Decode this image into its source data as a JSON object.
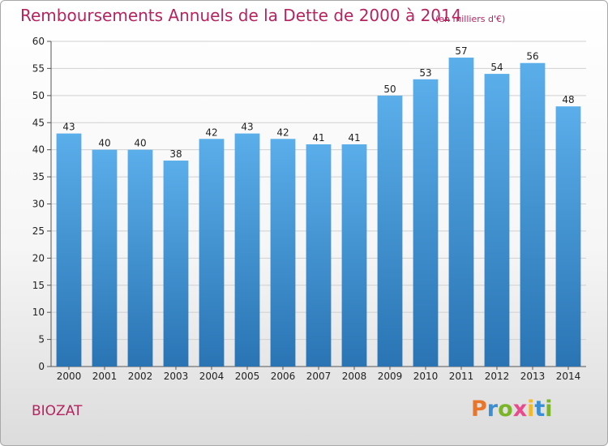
{
  "header": {
    "title": "Remboursements Annuels de la Dette de 2000 à 2014",
    "unit": "(en milliers d'€)"
  },
  "footer": {
    "commune": "BIOZAT",
    "logo": {
      "text": "Proxiti",
      "letters": [
        {
          "char": "P",
          "color": "#e8762a"
        },
        {
          "char": "r",
          "color": "#3a8fd4"
        },
        {
          "char": "o",
          "color": "#7ab528"
        },
        {
          "char": "x",
          "color": "#e84a8c"
        },
        {
          "char": "i",
          "color": "#f2b92b"
        },
        {
          "char": "t",
          "color": "#3a8fd4"
        },
        {
          "char": "i",
          "color": "#7ab528"
        }
      ]
    }
  },
  "chart_data": {
    "type": "bar",
    "title": "Remboursements Annuels de la Dette de 2000 à 2014",
    "subtitle": "(en milliers d'€)",
    "xlabel": "",
    "ylabel": "",
    "categories": [
      "2000",
      "2001",
      "2002",
      "2003",
      "2004",
      "2005",
      "2006",
      "2007",
      "2008",
      "2009",
      "2010",
      "2011",
      "2012",
      "2013",
      "2014"
    ],
    "values": [
      43,
      40,
      40,
      38,
      42,
      43,
      42,
      41,
      41,
      50,
      53,
      57,
      54,
      56,
      48
    ],
    "ylim": [
      0,
      60
    ],
    "yticks": [
      0,
      5,
      10,
      15,
      20,
      25,
      30,
      35,
      40,
      45,
      50,
      55,
      60
    ],
    "grid": true,
    "legend": "none",
    "colors": {
      "bar_top": "#5aaeea",
      "bar_bottom": "#2a74b4",
      "grid": "#d0d0d0",
      "axis": "#555555"
    }
  }
}
